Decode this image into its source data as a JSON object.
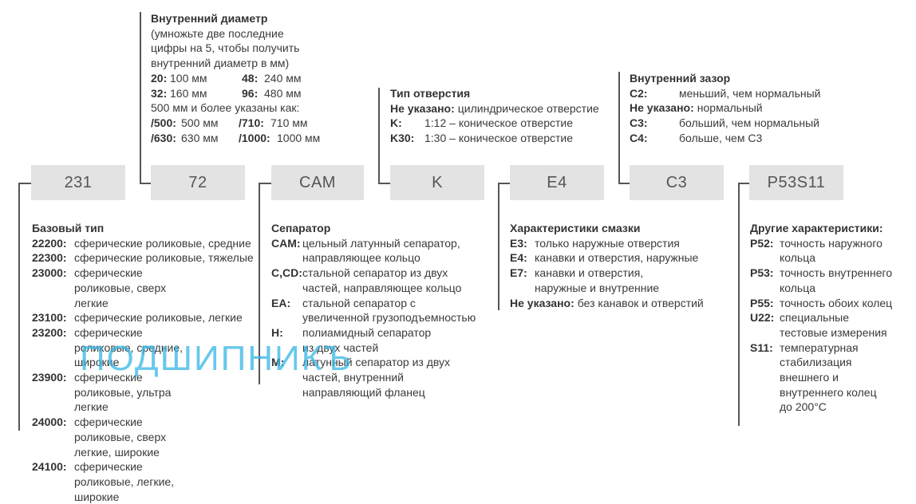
{
  "boxes": [
    "231",
    "72",
    "CAM",
    "K",
    "E4",
    "C3",
    "P53S11"
  ],
  "watermark": "ПОДШИПНИКЪ",
  "inner_diameter": {
    "title": "Внутренний диаметр",
    "note": "(умножьте две последние цифры на 5, чтобы получить внутренний диаметр в мм)",
    "pairs": [
      {
        "k": "20:",
        "v": "100 мм",
        "k2": "48:",
        "v2": "240 мм"
      },
      {
        "k": "32:",
        "v": "160 мм",
        "k2": "96:",
        "v2": "480 мм"
      }
    ],
    "above_note": "500 мм и более указаны как:",
    "pairs_big": [
      {
        "k": "/500:",
        "v": "500 мм",
        "k2": "/710:",
        "v2": "710 мм"
      },
      {
        "k": "/630:",
        "v": "630 мм",
        "k2": "/1000:",
        "v2": "1000 мм"
      }
    ]
  },
  "bore_type": {
    "title": "Тип отверстия",
    "rows": [
      {
        "k": "Не указано:",
        "v": "цилиндрическое отверстие"
      },
      {
        "k": "K:",
        "v": "1:12 – коническое отверстие"
      },
      {
        "k": "K30:",
        "v": "1:30 – коническое отверстие"
      }
    ]
  },
  "clearance": {
    "title": "Внутренний зазор",
    "rows": [
      {
        "k": "C2:",
        "v": "меньший, чем нормальный"
      },
      {
        "k": "Не указано:",
        "v": "нормальный"
      },
      {
        "k": "C3:",
        "v": "больший, чем нормальный"
      },
      {
        "k": "C4:",
        "v": "больше, чем C3"
      }
    ]
  },
  "base_type": {
    "title": "Базовый тип",
    "rows": [
      {
        "k": "22200:",
        "v": "сферические роликовые, средние"
      },
      {
        "k": "22300:",
        "v": "сферические роликовые, тяжелые"
      },
      {
        "k": "23000:",
        "v": "сферические роликовые, сверх легкие"
      },
      {
        "k": "23100:",
        "v": "сферические роликовые, легкие"
      },
      {
        "k": "23200:",
        "v": "сферические роликовые, средние, широкие"
      },
      {
        "k": "23900:",
        "v": "сферические роликовые, ультра легкие"
      },
      {
        "k": "24000:",
        "v": "сферические роликовые, сверх легкие, широкие"
      },
      {
        "k": "24100:",
        "v": "сферические роликовые, легкие, широкие"
      }
    ]
  },
  "cage": {
    "title": "Сепаратор",
    "rows": [
      {
        "k": "CAM:",
        "v": "цельный латунный сепаратор, направляющее кольцо"
      },
      {
        "k": "C,CD:",
        "v": "стальной сепаратор из двух частей, направляющее кольцо"
      },
      {
        "k": "EA:",
        "v": "стальной сепаратор с увеличенной грузоподъемностью"
      },
      {
        "k": "H:",
        "v": "полиамидный сепаратор из двух частей"
      },
      {
        "k": "M:",
        "v": "латунный сепаратор из двух частей, внутренний направляющий фланец"
      }
    ]
  },
  "lubrication": {
    "title": "Характеристики смазки",
    "rows": [
      {
        "k": "E3:",
        "v": "только наружные отверстия"
      },
      {
        "k": "E4:",
        "v": "канавки и отверстия, наружные"
      },
      {
        "k": "E7:",
        "v": "канавки и отверстия, наружные и внутренние"
      }
    ],
    "last": {
      "k": "Не указано:",
      "v": "без канавок и отверстий"
    }
  },
  "other": {
    "title": "Другие характеристики:",
    "rows": [
      {
        "k": "P52:",
        "v": "точность наружного кольца"
      },
      {
        "k": "P53:",
        "v": "точность внутреннего кольца"
      },
      {
        "k": "P55:",
        "v": "точность обоих колец"
      },
      {
        "k": "U22:",
        "v": "специальные тестовые измерения"
      },
      {
        "k": "S11:",
        "v": "температурная стабилизация внешнего и внутреннего колец до 200°C"
      }
    ]
  }
}
